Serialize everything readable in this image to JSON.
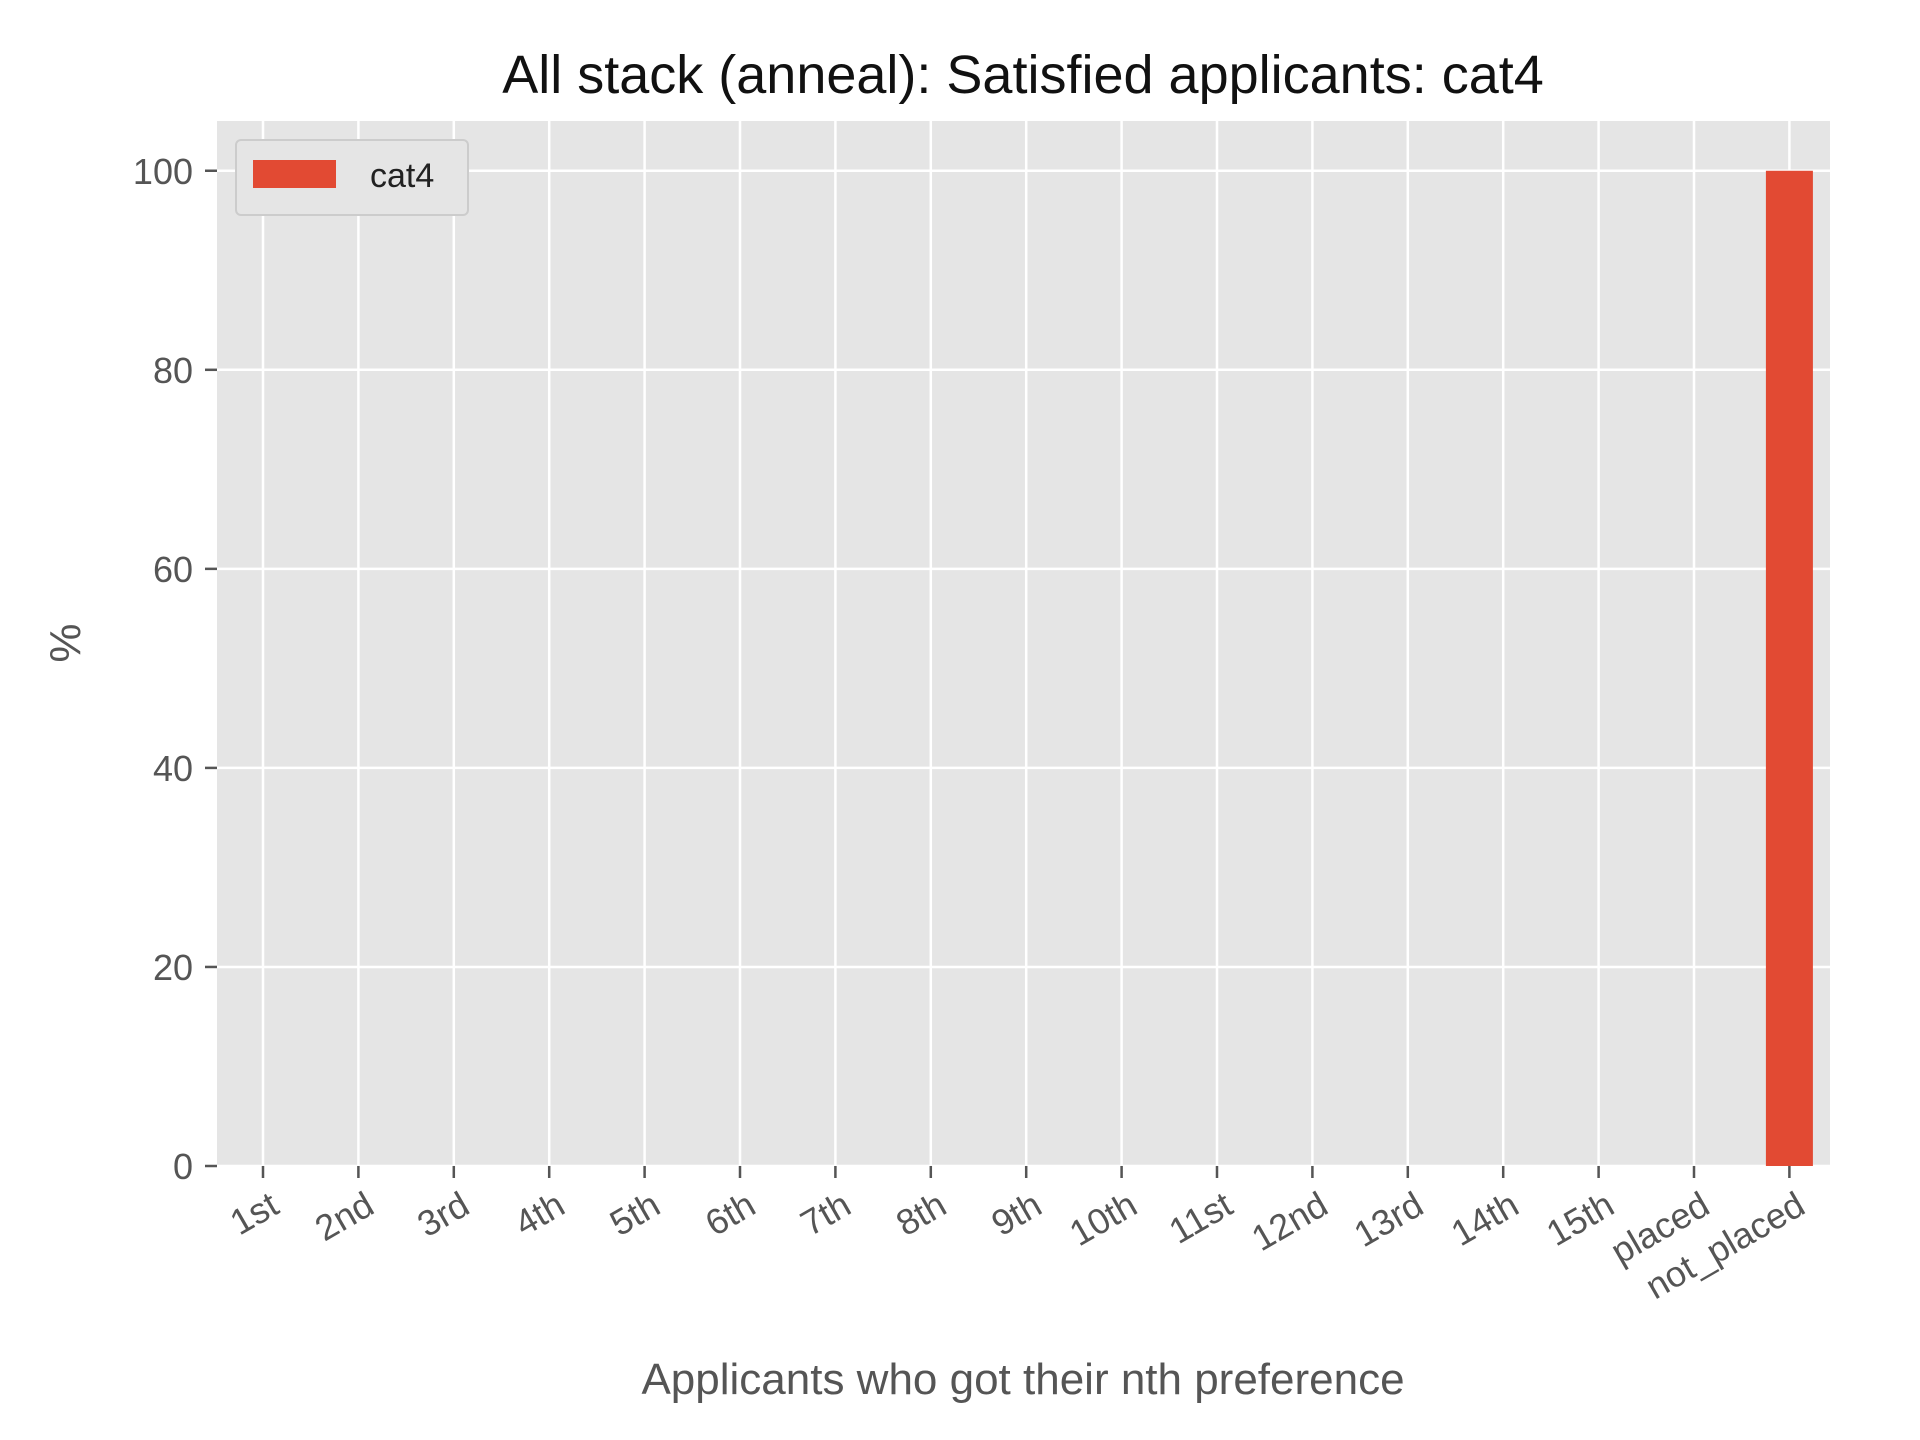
{
  "chart_data": {
    "type": "bar",
    "title": "All stack (anneal): Satisfied applicants: cat4",
    "xlabel": "Applicants who got their nth preference",
    "ylabel": "%",
    "categories": [
      "1st",
      "2nd",
      "3rd",
      "4th",
      "5th",
      "6th",
      "7th",
      "8th",
      "9th",
      "10th",
      "11st",
      "12nd",
      "13rd",
      "14th",
      "15th",
      "placed",
      "not_placed"
    ],
    "series": [
      {
        "name": "cat4",
        "color": "#E24A33",
        "values": [
          0,
          0,
          0,
          0,
          0,
          0,
          0,
          0,
          0,
          0,
          0,
          0,
          0,
          0,
          0,
          0,
          100
        ]
      }
    ],
    "ylim": [
      0,
      105
    ],
    "yticks": [
      0,
      20,
      40,
      60,
      80,
      100
    ],
    "grid": true,
    "legend_position": "top-left",
    "background_color": "#E5E5E5"
  }
}
